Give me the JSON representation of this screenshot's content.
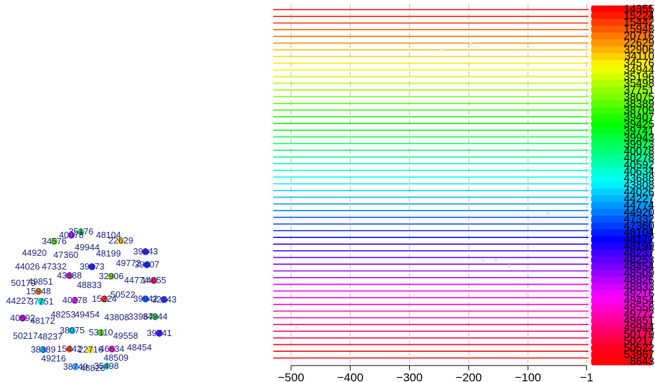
{
  "chart_data": [
    {
      "type": "scatter",
      "title": "",
      "points": [
        {
          "label": "35176",
          "color": "#33dd44"
        },
        {
          "label": "40078",
          "color": "#aa22ee"
        },
        {
          "label": "48104",
          "color": "#ffffff"
        },
        {
          "label": "34576",
          "color": "#66dd11"
        },
        {
          "label": "22629",
          "color": "#ffcc00"
        },
        {
          "label": "49944",
          "color": "#ffffff"
        },
        {
          "label": "44920",
          "color": "#ffffff"
        },
        {
          "label": "47360",
          "color": "#ffffff"
        },
        {
          "label": "48199",
          "color": "#ffffff"
        },
        {
          "label": "39943",
          "color": "#3322ff"
        },
        {
          "label": "44026",
          "color": "#ffffff"
        },
        {
          "label": "47332",
          "color": "#ffffff"
        },
        {
          "label": "39973",
          "color": "#2222ff"
        },
        {
          "label": "49772",
          "color": "#ffffff"
        },
        {
          "label": "39407",
          "color": "#1133ff"
        },
        {
          "label": "43688",
          "color": "#cc33aa"
        },
        {
          "label": "32906",
          "color": "#88dd11"
        },
        {
          "label": "44774",
          "color": "#ffffff"
        },
        {
          "label": "14855",
          "color": "#ff2244"
        },
        {
          "label": "50179",
          "color": "#ffffff"
        },
        {
          "label": "49851",
          "color": "#ffffff"
        },
        {
          "label": "48833",
          "color": "#ffffff"
        },
        {
          "label": "15948",
          "color": "#ff8800"
        },
        {
          "label": "50522",
          "color": "#ffffff"
        },
        {
          "label": "44227",
          "color": "#ffffff"
        },
        {
          "label": "37751",
          "color": "#00ddcc"
        },
        {
          "label": "40278",
          "color": "#dd22dd"
        },
        {
          "label": "15224",
          "color": "#ff3300"
        },
        {
          "label": "39942",
          "color": "#0066ff"
        },
        {
          "label": "32543",
          "color": "#3333ee"
        },
        {
          "label": "48253",
          "color": "#ffffff"
        },
        {
          "label": "49454",
          "color": "#ffffff"
        },
        {
          "label": "40592",
          "color": "#cc11cc"
        },
        {
          "label": "48172",
          "color": "#ffffff"
        },
        {
          "label": "43808",
          "color": "#ffffff"
        },
        {
          "label": "33967",
          "color": "#ffffff"
        },
        {
          "label": "34944",
          "color": "#44cc33"
        },
        {
          "label": "38075",
          "color": "#00ccee"
        },
        {
          "label": "53110",
          "color": "#55dd11"
        },
        {
          "label": "49558",
          "color": "#ffffff"
        },
        {
          "label": "50217",
          "color": "#ffffff"
        },
        {
          "label": "48237",
          "color": "#ffffff"
        },
        {
          "label": "39741",
          "color": "#4411ff"
        },
        {
          "label": "38389",
          "color": "#22aaff"
        },
        {
          "label": "15442",
          "color": "#ff5500"
        },
        {
          "label": "22716",
          "color": "#ffdd00"
        },
        {
          "label": "46634",
          "color": "#ff22aa"
        },
        {
          "label": "48454",
          "color": "#ffffff"
        },
        {
          "label": "49216",
          "color": "#ffffff"
        },
        {
          "label": "48509",
          "color": "#ffffff"
        },
        {
          "label": "38749",
          "color": "#44aaff"
        },
        {
          "label": "48826",
          "color": "#ffffff"
        },
        {
          "label": "35498",
          "color": "#33ccaa"
        }
      ]
    },
    {
      "type": "line",
      "title": "",
      "xlabel": "",
      "ylabel": "",
      "xlim": [
        -530,
        2
      ],
      "x_ticks": [
        "−500",
        "−400",
        "−300",
        "−200",
        "−100",
        "−1"
      ],
      "x_tick_values": [
        -500,
        -400,
        -300,
        -200,
        -100,
        -1
      ],
      "grid": "vertical dashed",
      "legend": "right",
      "series": [
        {
          "name": "14355",
          "color": "#ff0000"
        },
        {
          "name": "15224",
          "color": "#ff1e00"
        },
        {
          "name": "15442",
          "color": "#ff3c00"
        },
        {
          "name": "15948",
          "color": "#ff5a00"
        },
        {
          "name": "20716",
          "color": "#ff7800"
        },
        {
          "name": "22629",
          "color": "#ff9600"
        },
        {
          "name": "32906",
          "color": "#ffb400"
        },
        {
          "name": "34110",
          "color": "#ffd200"
        },
        {
          "name": "34576",
          "color": "#fff000"
        },
        {
          "name": "34944",
          "color": "#f0ff00"
        },
        {
          "name": "35196",
          "color": "#d2ff00"
        },
        {
          "name": "35498",
          "color": "#b4ff00"
        },
        {
          "name": "37751",
          "color": "#96ff00"
        },
        {
          "name": "38075",
          "color": "#78ff00"
        },
        {
          "name": "38389",
          "color": "#5aff00"
        },
        {
          "name": "38709",
          "color": "#3cff00"
        },
        {
          "name": "39407",
          "color": "#1eff00"
        },
        {
          "name": "39425",
          "color": "#00ff00"
        },
        {
          "name": "39741",
          "color": "#00ff1e"
        },
        {
          "name": "39943",
          "color": "#00ff3c"
        },
        {
          "name": "39973",
          "color": "#00ff5a"
        },
        {
          "name": "40078",
          "color": "#00ff78"
        },
        {
          "name": "40278",
          "color": "#00ff96"
        },
        {
          "name": "40592",
          "color": "#00ffb4"
        },
        {
          "name": "40634",
          "color": "#00ffd2"
        },
        {
          "name": "43688",
          "color": "#00fff0"
        },
        {
          "name": "43808",
          "color": "#00f0ff"
        },
        {
          "name": "44026",
          "color": "#00d2ff"
        },
        {
          "name": "44227",
          "color": "#00b4ff"
        },
        {
          "name": "44774",
          "color": "#0096ff"
        },
        {
          "name": "44920",
          "color": "#0078ff"
        },
        {
          "name": "47332",
          "color": "#005aff"
        },
        {
          "name": "47360",
          "color": "#003cff"
        },
        {
          "name": "48104",
          "color": "#001eff"
        },
        {
          "name": "48172",
          "color": "#0000ff"
        },
        {
          "name": "48199",
          "color": "#1e00ff"
        },
        {
          "name": "48237",
          "color": "#3c00ff"
        },
        {
          "name": "48253",
          "color": "#5a00ff"
        },
        {
          "name": "48454",
          "color": "#7800ff"
        },
        {
          "name": "48509",
          "color": "#9600ff"
        },
        {
          "name": "48826",
          "color": "#b400ff"
        },
        {
          "name": "48833",
          "color": "#d200ff"
        },
        {
          "name": "49216",
          "color": "#f000ff"
        },
        {
          "name": "49454",
          "color": "#ff00f0"
        },
        {
          "name": "49558",
          "color": "#ff00d2"
        },
        {
          "name": "49772",
          "color": "#ff00b4"
        },
        {
          "name": "49851",
          "color": "#ff0096"
        },
        {
          "name": "49944",
          "color": "#ff0078"
        },
        {
          "name": "50179",
          "color": "#ff005a"
        },
        {
          "name": "50217",
          "color": "#ff003c"
        },
        {
          "name": "50522",
          "color": "#ff001e"
        },
        {
          "name": "53967",
          "color": "#ff0010"
        },
        {
          "name": "8643",
          "color": "#ff0008"
        }
      ]
    }
  ]
}
